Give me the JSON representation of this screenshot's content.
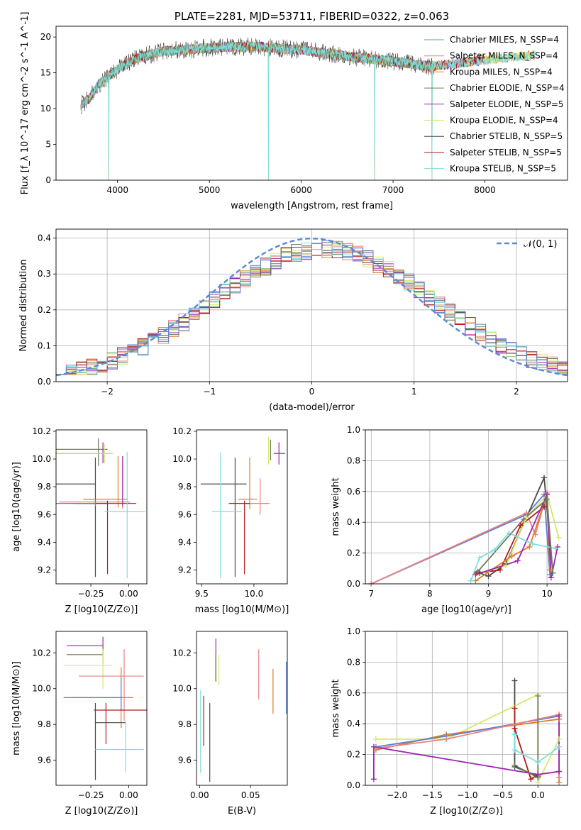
{
  "chart_data": [
    {
      "type": "line",
      "title": "PLATE=2281, MJD=53711, FIBERID=0322, z=0.063",
      "xlabel": "wavelength [Angstrom, rest frame]",
      "ylabel": "Flux [f_λ 10^-17 erg cm^-2 s^-1 A^-1]",
      "xlim": [
        3330,
        8900
      ],
      "ylim": [
        0,
        21.5
      ],
      "xticks": [
        "4000",
        "5000",
        "6000",
        "7000",
        "8000"
      ],
      "yticks": [
        "0",
        "5",
        "10",
        "15",
        "20"
      ],
      "grid": false,
      "legend_position": "right",
      "series": [
        {
          "name": "Chabrier MILES, N_SSP=4",
          "color": "#5fa37a"
        },
        {
          "name": "Salpeter MILES, N_SSP=4",
          "color": "#e8827f"
        },
        {
          "name": "Kroupa MILES, N_SSP=4",
          "color": "#e07b2a"
        },
        {
          "name": "Chabrier ELODIE, N_SSP=4",
          "color": "#6f7a5a"
        },
        {
          "name": "Salpeter ELODIE, N_SSP=5",
          "color": "#9c27b0"
        },
        {
          "name": "Kroupa ELODIE, N_SSP=4",
          "color": "#d6e86a"
        },
        {
          "name": "Chabrier STELIB, N_SSP=5",
          "color": "#4a4a4a"
        },
        {
          "name": "Salpeter STELIB, N_SSP=5",
          "color": "#b01c1c"
        },
        {
          "name": "Kroupa STELIB, N_SSP=5",
          "color": "#7fdde0"
        }
      ],
      "continuum_x": [
        3600,
        3700,
        3800,
        3900,
        4000,
        4200,
        4500,
        5000,
        5500,
        6000,
        6500,
        7000,
        7400,
        7700,
        8000,
        8300,
        8600
      ],
      "continuum_y": [
        10.5,
        11.5,
        13.5,
        14.5,
        15.5,
        17.0,
        18.0,
        18.5,
        18.7,
        18.2,
        17.3,
        16.6,
        15.9,
        16.3,
        16.8,
        17.2,
        17.6
      ],
      "dips": [
        3905,
        5645,
        6800,
        7425
      ]
    },
    {
      "type": "line",
      "xlabel": "(data-model)/error",
      "ylabel": "Normed distribution",
      "xlim": [
        -2.5,
        2.5
      ],
      "ylim": [
        0,
        0.425
      ],
      "xticks": [
        "−2",
        "−1",
        "0",
        "1",
        "2"
      ],
      "yticks": [
        "0.0",
        "0.1",
        "0.2",
        "0.3",
        "0.4"
      ],
      "grid": true,
      "legend": "𝒩(0, 1)",
      "legend_position": "top-right",
      "histogram_bin_width": 0.1
    },
    {
      "type": "scatter",
      "xlabel": "Z [log10(Z/Z⊙)]",
      "ylabel": "age  [log10(age/yr)]",
      "xlim": [
        -0.48,
        0.12
      ],
      "ylim": [
        9.1,
        10.21
      ],
      "xticks": [
        "−0.25",
        "0.00"
      ],
      "yticks": [
        "9.2",
        "9.4",
        "9.6",
        "9.8",
        "10.0",
        "10.2"
      ],
      "points": [
        {
          "x": -0.2,
          "y": 10.07,
          "xerr": [
            0.42,
            0.06
          ],
          "yerr": [
            9.95,
            10.15
          ],
          "color": "#6f7a5a"
        },
        {
          "x": -0.17,
          "y": 10.04,
          "xerr": [
            0.41,
            0.06
          ],
          "yerr": [
            9.97,
            10.12
          ],
          "color": "#9c27b0"
        },
        {
          "x": -0.16,
          "y": 10.04,
          "xerr": [
            0.43,
            0.06
          ],
          "yerr": [
            9.97,
            10.11
          ],
          "color": "#d6e86a"
        },
        {
          "x": -0.22,
          "y": 9.82,
          "xerr": [
            0.26,
            0.0
          ],
          "yerr": [
            9.15,
            10.01
          ],
          "color": "#4a4a4a"
        },
        {
          "x": -0.07,
          "y": 9.71,
          "xerr": [
            0.23,
            0.06
          ],
          "yerr": [
            9.65,
            10.02
          ],
          "color": "#e07b2a"
        },
        {
          "x": -0.04,
          "y": 9.69,
          "xerr": [
            0.42,
            0.05
          ],
          "yerr": [
            9.64,
            10.02
          ],
          "color": "#e8827f"
        },
        {
          "x": -0.04,
          "y": 9.68,
          "xerr": [
            0.33,
            0.09
          ],
          "yerr": [
            9.66,
            10.02
          ],
          "color": "#9c27b0"
        },
        {
          "x": -0.14,
          "y": 9.68,
          "xerr": [
            0.2,
            0.0
          ],
          "yerr": [
            9.17,
            9.7
          ],
          "color": "#b01c1c"
        },
        {
          "x": -0.22,
          "y": 9.68,
          "xerr": [
            0.44,
            0.0
          ],
          "yerr": [
            9.66,
            9.7
          ],
          "color": "#5c7fd6"
        },
        {
          "x": -0.01,
          "y": 9.62,
          "xerr": [
            0.15,
            0.12
          ],
          "yerr": [
            9.14,
            10.05
          ],
          "color": "#7fdde0"
        }
      ]
    },
    {
      "type": "scatter",
      "xlabel": "mass [log10(M/M⊙)]",
      "xlim": [
        9.45,
        10.32
      ],
      "ylim": [
        9.1,
        10.21
      ],
      "xticks": [
        "9.5",
        "10.0"
      ],
      "yticks": [
        "9.2",
        "9.4",
        "9.6",
        "9.8",
        "10.0",
        "10.2"
      ],
      "points": [
        {
          "x": 10.16,
          "y": 10.06,
          "xerr": [
            0.0,
            0.0
          ],
          "yerr": [
            9.99,
            10.14
          ],
          "color": "#6f7a5a"
        },
        {
          "x": 10.24,
          "y": 10.04,
          "xerr": [
            0.05,
            0.06
          ],
          "yerr": [
            9.96,
            10.12
          ],
          "color": "#9c27b0"
        },
        {
          "x": 10.14,
          "y": 10.04,
          "xerr": [
            0.0,
            0.0
          ],
          "yerr": [
            9.96,
            10.16
          ],
          "color": "#d6e86a"
        },
        {
          "x": 9.82,
          "y": 9.82,
          "xerr": [
            0.33,
            0.11
          ],
          "yerr": [
            9.15,
            10.01
          ],
          "color": "#4a4a4a"
        },
        {
          "x": 9.96,
          "y": 9.71,
          "xerr": [
            0.11,
            0.07
          ],
          "yerr": [
            9.64,
            10.01
          ],
          "color": "#e07b2a"
        },
        {
          "x": 10.06,
          "y": 9.68,
          "xerr": [
            0.14,
            0.09
          ],
          "yerr": [
            9.6,
            9.86
          ],
          "color": "#e8827f"
        },
        {
          "x": 9.91,
          "y": 9.68,
          "xerr": [
            0.15,
            0.05
          ],
          "yerr": [
            9.17,
            9.7
          ],
          "color": "#b01c1c"
        },
        {
          "x": 9.68,
          "y": 9.62,
          "xerr": [
            0.08,
            0.2
          ],
          "yerr": [
            9.14,
            10.05
          ],
          "color": "#7fdde0"
        }
      ]
    },
    {
      "type": "line",
      "xlabel": "age  [log10(age/yr)]",
      "ylabel": "mass weight",
      "xlim": [
        6.9,
        10.35
      ],
      "ylim": [
        0,
        1
      ],
      "xticks": [
        "7",
        "8",
        "9",
        "10"
      ],
      "yticks": [
        "0.0",
        "0.2",
        "0.4",
        "0.6",
        "0.8",
        "1.0"
      ],
      "grid": true,
      "series": [
        {
          "color": "#5c7fd6",
          "x": [
            7.0,
            9.65,
            9.95,
            10.05
          ],
          "y": [
            0.0,
            0.45,
            0.58,
            0.06
          ]
        },
        {
          "color": "#e8827f",
          "x": [
            7.0,
            9.65,
            9.8,
            10.0
          ],
          "y": [
            0.0,
            0.46,
            0.32,
            0.59
          ]
        },
        {
          "color": "#4a4a4a",
          "x": [
            8.85,
            9.0,
            9.3,
            9.95,
            10.1
          ],
          "y": [
            0.07,
            0.05,
            0.13,
            0.69,
            0.07
          ]
        },
        {
          "color": "#b01c1c",
          "x": [
            8.8,
            9.2,
            9.55,
            9.95
          ],
          "y": [
            0.07,
            0.09,
            0.38,
            0.5
          ]
        },
        {
          "color": "#d6e86a",
          "x": [
            8.78,
            9.3,
            9.65,
            10.0,
            10.2
          ],
          "y": [
            0.06,
            0.12,
            0.43,
            0.58,
            0.3
          ]
        },
        {
          "color": "#e07b2a",
          "x": [
            8.78,
            9.4,
            9.7,
            10.0,
            10.05
          ],
          "y": [
            0.02,
            0.18,
            0.24,
            0.58,
            0.09
          ]
        },
        {
          "color": "#9c27b0",
          "x": [
            8.78,
            9.5,
            10.0,
            10.07,
            10.18
          ],
          "y": [
            0.06,
            0.15,
            0.58,
            0.04,
            0.24
          ]
        },
        {
          "color": "#7fdde0",
          "x": [
            8.7,
            8.85,
            9.1,
            9.35,
            9.75,
            10.15
          ],
          "y": [
            0.02,
            0.17,
            0.22,
            0.33,
            0.26,
            0.23
          ]
        },
        {
          "color": "#6f7a5a",
          "x": [
            8.82,
            9.6,
            10.0,
            10.1
          ],
          "y": [
            0.08,
            0.42,
            0.55,
            0.07
          ]
        }
      ]
    },
    {
      "type": "scatter",
      "xlabel": "Z [log10(Z/Z⊙)]",
      "ylabel": "mass [log10(M/M⊙)]",
      "xlim": [
        -0.48,
        0.12
      ],
      "ylim": [
        9.46,
        10.32
      ],
      "xticks": [
        "−0.25",
        "0.00"
      ],
      "yticks": [
        "9.6",
        "9.8",
        "10.0",
        "10.2"
      ],
      "points": [
        {
          "x": -0.17,
          "y": 10.24,
          "xerr": [
            0.24,
            0.0
          ],
          "yerr": [
            10.19,
            10.29
          ],
          "color": "#9c27b0"
        },
        {
          "x": -0.17,
          "y": 10.19,
          "xerr": [
            0.24,
            0.0
          ],
          "yerr": [
            10.14,
            10.24
          ],
          "color": "#6f7a5a"
        },
        {
          "x": -0.17,
          "y": 10.13,
          "xerr": [
            0.26,
            0.06
          ],
          "yerr": [
            10.0,
            10.22
          ],
          "color": "#d6e86a"
        },
        {
          "x": -0.03,
          "y": 10.07,
          "xerr": [
            0.3,
            0.13
          ],
          "yerr": [
            9.82,
            10.22
          ],
          "color": "#e8827f"
        },
        {
          "x": -0.05,
          "y": 9.95,
          "xerr": [
            0.33,
            0.08
          ],
          "yerr": [
            9.78,
            10.12
          ],
          "color": "#e07b2a"
        },
        {
          "x": -0.05,
          "y": 9.95,
          "xerr": [
            0.38,
            0.0
          ],
          "yerr": [
            9.88,
            10.06
          ],
          "color": "#5c7fd6"
        },
        {
          "x": -0.15,
          "y": 9.88,
          "xerr": [
            0.08,
            0.27
          ],
          "yerr": [
            9.69,
            9.92
          ],
          "color": "#b01c1c"
        },
        {
          "x": -0.22,
          "y": 9.81,
          "xerr": [
            0.0,
            0.2
          ],
          "yerr": [
            9.49,
            9.92
          ],
          "color": "#4a4a4a"
        },
        {
          "x": -0.02,
          "y": 9.66,
          "xerr": [
            0.2,
            0.12
          ],
          "yerr": [
            9.53,
            9.82
          ],
          "color": "#7fdde0"
        }
      ]
    },
    {
      "type": "scatter",
      "xlabel": "E(B-V)",
      "xlim": [
        -0.003,
        0.086
      ],
      "ylim": [
        9.46,
        10.32
      ],
      "xticks": [
        "0.00",
        "0.05"
      ],
      "yticks": [
        "9.6",
        "9.8",
        "10.0",
        "10.2"
      ],
      "points": [
        {
          "x": 0.016,
          "y": 10.2,
          "yerr": [
            10.04,
            10.28
          ],
          "color": "#9c27b0"
        },
        {
          "x": 0.016,
          "y": 10.1,
          "yerr": [
            10.04,
            10.2
          ],
          "color": "#6f7a5a"
        },
        {
          "x": 0.019,
          "y": 10.1,
          "yerr": [
            10.02,
            10.19
          ],
          "color": "#d6e86a"
        },
        {
          "x": 0.058,
          "y": 10.08,
          "yerr": [
            9.94,
            10.22
          ],
          "color": "#e8827f"
        },
        {
          "x": 0.072,
          "y": 9.98,
          "yerr": [
            9.86,
            10.11
          ],
          "color": "#e07b2a"
        },
        {
          "x": 0.085,
          "y": 10.0,
          "yerr": [
            9.86,
            10.15
          ],
          "color": "#5c7fd6"
        },
        {
          "x": 0.004,
          "y": 9.82,
          "yerr": [
            9.68,
            9.96
          ],
          "color": "#b01c1c"
        },
        {
          "x": 0.01,
          "y": 9.7,
          "yerr": [
            9.48,
            9.92
          ],
          "color": "#4a4a4a"
        },
        {
          "x": 0.001,
          "y": 9.75,
          "yerr": [
            9.53,
            9.99
          ],
          "color": "#7fdde0"
        }
      ]
    },
    {
      "type": "line",
      "xlabel": "Z [log10(Z/Z⊙)]",
      "ylabel": "mass weight",
      "xlim": [
        -2.45,
        0.42
      ],
      "ylim": [
        0,
        1
      ],
      "xticks": [
        "−2.0",
        "−1.5",
        "−1.0",
        "−0.5",
        "0.0"
      ],
      "yticks": [
        "0.0",
        "0.2",
        "0.4",
        "0.6",
        "0.8",
        "1.0"
      ],
      "grid": true,
      "series": [
        {
          "color": "#4a4a4a",
          "x": [
            -0.33,
            -0.33,
            0.0,
            0.0
          ],
          "y": [
            0.68,
            0.12,
            0.06,
            0.07
          ]
        },
        {
          "color": "#b01c1c",
          "x": [
            -0.33,
            -0.33,
            -0.1,
            0.0,
            0.3
          ],
          "y": [
            0.5,
            0.37,
            0.04,
            0.07,
            0.09
          ]
        },
        {
          "color": "#d6e86a",
          "x": [
            -2.3,
            -1.3,
            0.0,
            0.0,
            0.3
          ],
          "y": [
            0.3,
            0.3,
            0.59,
            0.02,
            0.3
          ]
        },
        {
          "color": "#e07b2a",
          "x": [
            -2.3,
            -1.3,
            0.3,
            0.3,
            0.3
          ],
          "y": [
            0.23,
            0.33,
            0.43,
            0.02,
            0.43
          ]
        },
        {
          "color": "#5c7fd6",
          "x": [
            -2.3,
            -1.3,
            0.3,
            0.3
          ],
          "y": [
            0.25,
            0.32,
            0.45,
            0.05
          ]
        },
        {
          "color": "#e8827f",
          "x": [
            -2.3,
            -1.3,
            0.3,
            0.3
          ],
          "y": [
            0.24,
            0.3,
            0.46,
            0.05
          ]
        },
        {
          "color": "#9c27b0",
          "x": [
            -2.33,
            -2.33,
            0.0,
            0.3,
            0.3
          ],
          "y": [
            0.04,
            0.25,
            0.07,
            0.09,
            0.45
          ]
        },
        {
          "color": "#7fdde0",
          "x": [
            -0.33,
            -0.33,
            0.0,
            0.3
          ],
          "y": [
            0.33,
            0.23,
            0.15,
            0.25
          ]
        },
        {
          "color": "#6f7a5a",
          "x": [
            -0.33,
            0.0,
            0.0
          ],
          "y": [
            0.13,
            0.05,
            0.58
          ]
        }
      ]
    }
  ]
}
